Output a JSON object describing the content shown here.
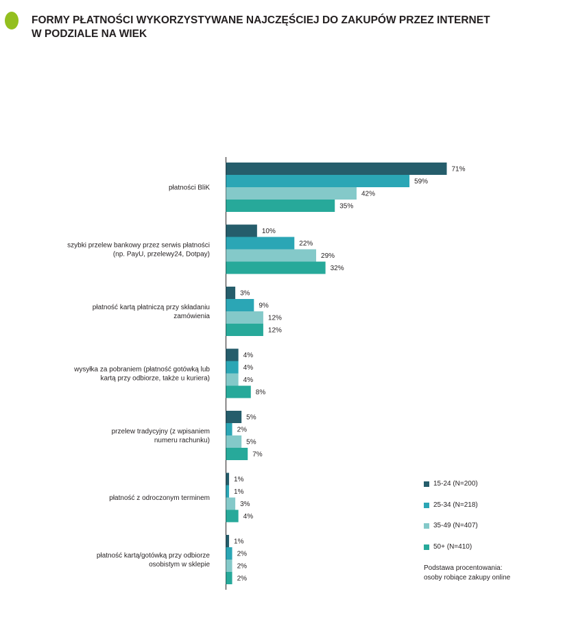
{
  "title": {
    "line1": "FORMY PŁATNOŚCI WYKORZYSTYWANE NAJCZĘŚCIEJ DO ZAKUPÓW PRZEZ INTERNET",
    "line2": "W PODZIALE NA WIEK"
  },
  "colors": {
    "title_marker": "#93bf1f",
    "series": [
      "#255d6b",
      "#2ba6b5",
      "#84c9c9",
      "#27a99a"
    ]
  },
  "note": {
    "line1": "Podstawa procentowania:",
    "line2": "osoby robiące zakupy online"
  },
  "chart_data": {
    "type": "bar",
    "orientation": "horizontal",
    "value_unit": "%",
    "categories": [
      [
        "płatności BliK"
      ],
      [
        "szybki przelew bankowy przez serwis płatności",
        "(np. PayU, przelewy24, Dotpay)"
      ],
      [
        "płatność kartą płatniczą przy składaniu",
        "zamówienia"
      ],
      [
        "wysyłka za pobraniem (płatność gotówką lub",
        "kartą przy odbiorze, także u kuriera)"
      ],
      [
        "przelew tradycyjny (z wpisaniem",
        "numeru rachunku)"
      ],
      [
        "płatność z odroczonym terminem"
      ],
      [
        "płatność kartą/gotówką przy odbiorze",
        "osobistym w sklepie"
      ]
    ],
    "series": [
      {
        "name": "15-24 (N=200)",
        "values": [
          71,
          10,
          3,
          4,
          5,
          1,
          1
        ]
      },
      {
        "name": "25-34 (N=218)",
        "values": [
          59,
          22,
          9,
          4,
          2,
          1,
          2
        ]
      },
      {
        "name": "35-49 (N=407)",
        "values": [
          42,
          29,
          12,
          4,
          5,
          3,
          2
        ]
      },
      {
        "name": "50+ (N=410)",
        "values": [
          35,
          32,
          12,
          8,
          7,
          4,
          2
        ]
      }
    ],
    "legend_position": "right-bottom",
    "grid": false
  }
}
